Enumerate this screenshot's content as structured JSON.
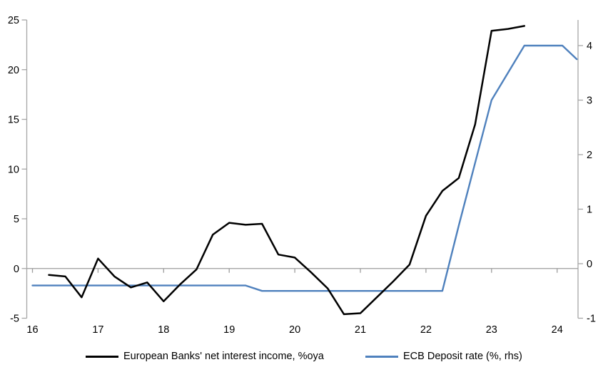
{
  "chart_data": {
    "type": "line",
    "title": "",
    "legend_position": "bottom",
    "grid": "zero-line-only",
    "x_axis": {
      "tick_labels": [
        "16",
        "17",
        "18",
        "19",
        "20",
        "21",
        "22",
        "23",
        "24"
      ],
      "tick_values": [
        16,
        17,
        18,
        19,
        20,
        21,
        22,
        23,
        24
      ],
      "range": [
        15.9,
        24.35
      ]
    },
    "left_axis": {
      "tick_labels": [
        "-5",
        "0",
        "5",
        "10",
        "15",
        "20",
        "25"
      ],
      "tick_values": [
        -5,
        0,
        5,
        10,
        15,
        20,
        25
      ],
      "range": [
        -5,
        25
      ]
    },
    "right_axis": {
      "tick_labels": [
        "-1",
        "0",
        "1",
        "2",
        "3",
        "4"
      ],
      "tick_values": [
        -1,
        0,
        1,
        2,
        3,
        4
      ],
      "range": [
        -1,
        4.47
      ]
    },
    "series": [
      {
        "name": "European Banks' net interest income, %oya",
        "axis": "left",
        "color": "#000000",
        "stroke_width": 2.5,
        "points": [
          [
            16.25,
            -0.65
          ],
          [
            16.5,
            -0.8
          ],
          [
            16.75,
            -2.9
          ],
          [
            17.0,
            1.0
          ],
          [
            17.25,
            -0.8
          ],
          [
            17.5,
            -1.9
          ],
          [
            17.75,
            -1.4
          ],
          [
            18.0,
            -3.3
          ],
          [
            18.25,
            -1.6
          ],
          [
            18.5,
            -0.1
          ],
          [
            18.75,
            3.4
          ],
          [
            19.0,
            4.6
          ],
          [
            19.25,
            4.4
          ],
          [
            19.5,
            4.5
          ],
          [
            19.75,
            1.4
          ],
          [
            20.0,
            1.1
          ],
          [
            20.25,
            -0.4
          ],
          [
            20.5,
            -2.0
          ],
          [
            20.75,
            -4.6
          ],
          [
            21.0,
            -4.5
          ],
          [
            21.25,
            -2.9
          ],
          [
            21.5,
            -1.3
          ],
          [
            21.75,
            0.4
          ],
          [
            22.0,
            5.3
          ],
          [
            22.25,
            7.8
          ],
          [
            22.5,
            9.1
          ],
          [
            22.75,
            14.5
          ],
          [
            23.0,
            23.9
          ],
          [
            23.25,
            24.1
          ],
          [
            23.5,
            24.4
          ]
        ]
      },
      {
        "name": "ECB Deposit rate (%, rhs)",
        "axis": "right",
        "color": "#4F81BD",
        "stroke_width": 2.4,
        "points": [
          [
            16.0,
            -0.4
          ],
          [
            19.25,
            -0.4
          ],
          [
            19.5,
            -0.5
          ],
          [
            22.25,
            -0.5
          ],
          [
            22.5,
            0.7
          ],
          [
            22.75,
            1.85
          ],
          [
            23.0,
            3.0
          ],
          [
            23.25,
            3.5
          ],
          [
            23.5,
            4.0
          ],
          [
            24.08,
            4.0
          ],
          [
            24.3,
            3.75
          ]
        ]
      }
    ]
  },
  "colors": {
    "axis_line": "#a6a6a6",
    "zero_line": "#9d9d9d",
    "text": "#000000"
  }
}
